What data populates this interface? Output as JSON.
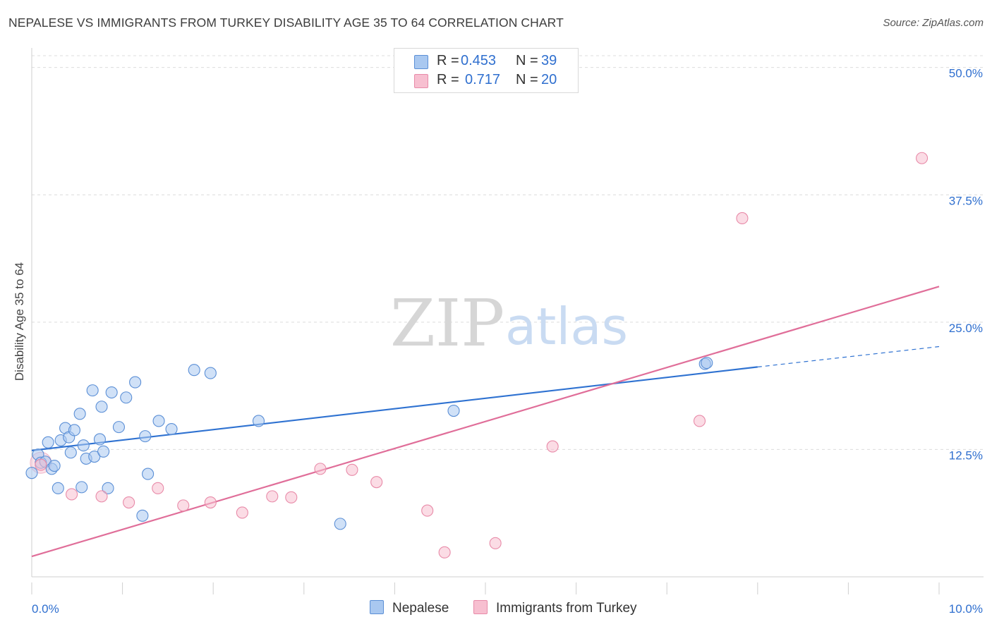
{
  "title": "NEPALESE VS IMMIGRANTS FROM TURKEY DISABILITY AGE 35 TO 64 CORRELATION CHART",
  "source": "Source: ZipAtlas.com",
  "watermark": {
    "zip": "ZIP",
    "atlas": "atlas"
  },
  "colors": {
    "blue_fill": "#a9c8f0",
    "blue_stroke": "#5b8fd6",
    "blue_line": "#2f72d1",
    "pink_fill": "#f7bfd0",
    "pink_stroke": "#e88aa8",
    "pink_line": "#e06e99",
    "value_text": "#2f6fcf",
    "grid": "#dcdcdc"
  },
  "legend": {
    "rows": [
      {
        "r_label": "R =",
        "r_value": "0.453",
        "n_label": "N =",
        "n_value": "39"
      },
      {
        "r_label": "R =",
        "r_value": "0.717",
        "n_label": "N =",
        "n_value": "20"
      }
    ]
  },
  "bottom_legend": {
    "series1": "Nepalese",
    "series2": "Immigrants from Turkey"
  },
  "chart_data": {
    "type": "scatter",
    "title": "NEPALESE VS IMMIGRANTS FROM TURKEY DISABILITY AGE 35 TO 64 CORRELATION CHART",
    "xlabel": "",
    "ylabel": "Disability Age 35 to 64",
    "xlim": [
      0,
      10
    ],
    "ylim": [
      0,
      51.5
    ],
    "x_tick_labels": [
      "0.0%",
      "10.0%"
    ],
    "y_ticks": [
      12.5,
      25.0,
      37.5,
      50.0
    ],
    "y_tick_labels": [
      "12.5%",
      "25.0%",
      "37.5%",
      "50.0%"
    ],
    "grid": true,
    "series": [
      {
        "name": "Nepalese",
        "r": 0.453,
        "n": 39,
        "points": [
          {
            "x": 0.0,
            "y": 10.2
          },
          {
            "x": 0.07,
            "y": 12.0
          },
          {
            "x": 0.1,
            "y": 11.2
          },
          {
            "x": 0.15,
            "y": 11.3
          },
          {
            "x": 0.18,
            "y": 13.2
          },
          {
            "x": 0.22,
            "y": 10.6
          },
          {
            "x": 0.25,
            "y": 10.9
          },
          {
            "x": 0.29,
            "y": 8.7
          },
          {
            "x": 0.32,
            "y": 13.4
          },
          {
            "x": 0.37,
            "y": 14.6
          },
          {
            "x": 0.41,
            "y": 13.7
          },
          {
            "x": 0.43,
            "y": 12.2
          },
          {
            "x": 0.47,
            "y": 14.4
          },
          {
            "x": 0.53,
            "y": 16.0
          },
          {
            "x": 0.55,
            "y": 8.8
          },
          {
            "x": 0.57,
            "y": 12.9
          },
          {
            "x": 0.6,
            "y": 11.6
          },
          {
            "x": 0.67,
            "y": 18.3
          },
          {
            "x": 0.69,
            "y": 11.8
          },
          {
            "x": 0.75,
            "y": 13.5
          },
          {
            "x": 0.77,
            "y": 16.7
          },
          {
            "x": 0.79,
            "y": 12.3
          },
          {
            "x": 0.84,
            "y": 8.7
          },
          {
            "x": 0.88,
            "y": 18.1
          },
          {
            "x": 0.96,
            "y": 14.7
          },
          {
            "x": 1.04,
            "y": 17.6
          },
          {
            "x": 1.14,
            "y": 19.1
          },
          {
            "x": 1.22,
            "y": 6.0
          },
          {
            "x": 1.25,
            "y": 13.8
          },
          {
            "x": 1.28,
            "y": 10.1
          },
          {
            "x": 1.4,
            "y": 15.3
          },
          {
            "x": 1.54,
            "y": 14.5
          },
          {
            "x": 1.79,
            "y": 20.3
          },
          {
            "x": 1.97,
            "y": 20.0
          },
          {
            "x": 2.5,
            "y": 15.3
          },
          {
            "x": 3.4,
            "y": 5.2
          },
          {
            "x": 4.65,
            "y": 16.3
          },
          {
            "x": 7.42,
            "y": 20.9
          },
          {
            "x": 7.44,
            "y": 21.0
          }
        ],
        "trend": {
          "x0": 0.0,
          "y0": 12.4,
          "x1": 8.0,
          "y1": 20.6,
          "dashed_to_x": 10.0,
          "dashed_to_y": 22.6
        }
      },
      {
        "name": "Immigrants from Turkey",
        "r": 0.717,
        "n": 20,
        "points": [
          {
            "x": 0.1,
            "y": 11.0
          },
          {
            "x": 0.44,
            "y": 8.1
          },
          {
            "x": 0.77,
            "y": 7.9
          },
          {
            "x": 1.07,
            "y": 7.3
          },
          {
            "x": 1.39,
            "y": 8.7
          },
          {
            "x": 1.67,
            "y": 7.0
          },
          {
            "x": 1.97,
            "y": 7.3
          },
          {
            "x": 2.32,
            "y": 6.3
          },
          {
            "x": 2.65,
            "y": 7.9
          },
          {
            "x": 2.86,
            "y": 7.8
          },
          {
            "x": 3.18,
            "y": 10.6
          },
          {
            "x": 3.53,
            "y": 10.5
          },
          {
            "x": 3.8,
            "y": 9.3
          },
          {
            "x": 4.36,
            "y": 6.5
          },
          {
            "x": 4.55,
            "y": 2.4
          },
          {
            "x": 5.11,
            "y": 3.3
          },
          {
            "x": 5.74,
            "y": 12.8
          },
          {
            "x": 7.36,
            "y": 15.3
          },
          {
            "x": 7.83,
            "y": 35.2
          },
          {
            "x": 9.81,
            "y": 41.1
          }
        ],
        "trend": {
          "x0": 0.0,
          "y0": 2.0,
          "x1": 10.0,
          "y1": 28.5
        }
      }
    ]
  }
}
